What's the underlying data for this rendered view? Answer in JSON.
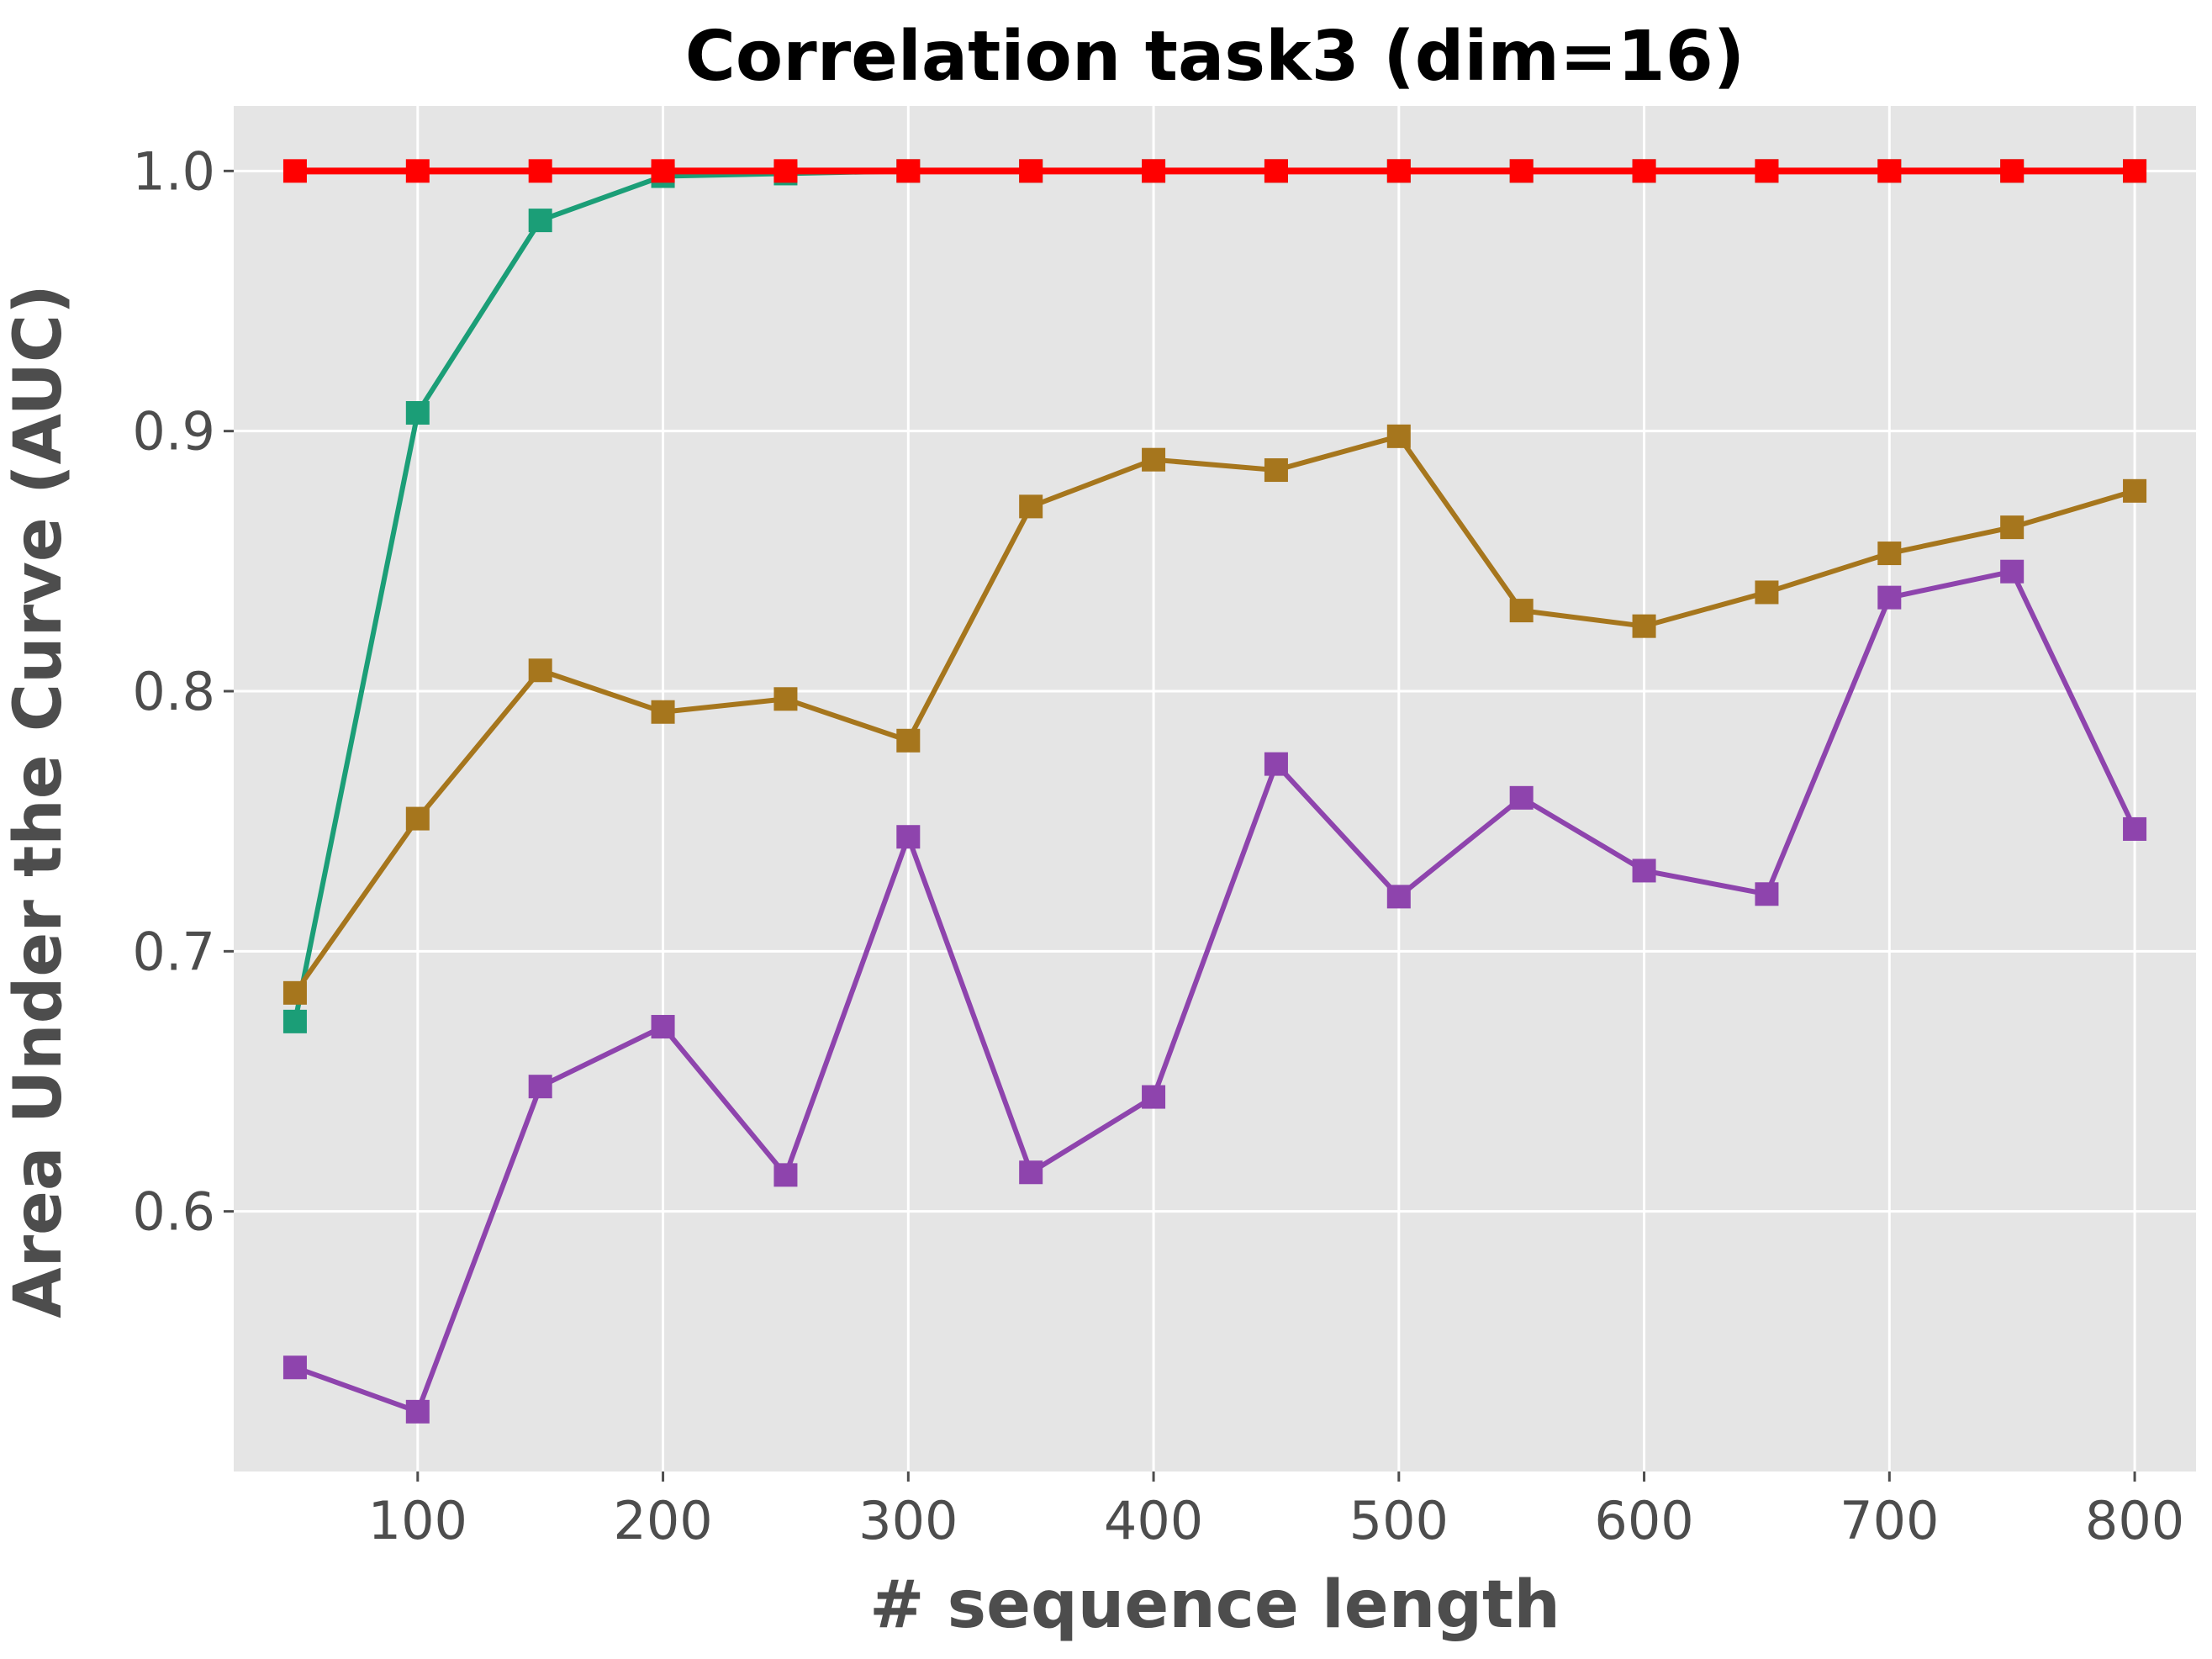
{
  "chart_data": {
    "type": "line",
    "title": "Correlation task3 (dim=16)",
    "xlabel": "# sequence length",
    "ylabel": "Area Under the Curve (AUC)",
    "x": [
      50,
      100,
      150,
      200,
      250,
      300,
      350,
      400,
      450,
      500,
      550,
      600,
      650,
      700,
      750,
      800
    ],
    "xlim": [
      25,
      825
    ],
    "ylim": [
      0.5,
      1.025
    ],
    "x_ticks": [
      100,
      200,
      300,
      400,
      500,
      600,
      700,
      800
    ],
    "y_ticks": [
      0.6,
      0.7,
      0.8,
      0.9,
      1.0
    ],
    "x_tick_labels": [
      "100",
      "200",
      "300",
      "400",
      "500",
      "600",
      "700",
      "800"
    ],
    "y_tick_labels": [
      "0.6",
      "0.7",
      "0.8",
      "0.9",
      "1.0"
    ],
    "grid": true,
    "background": "#e5e5e5",
    "series": [
      {
        "color": "#1b9e77",
        "marker": "square",
        "values": [
          0.673,
          0.907,
          0.981,
          0.998,
          0.999,
          1.0,
          1.0,
          1.0,
          1.0,
          1.0,
          1.0,
          1.0,
          1.0,
          1.0,
          1.0,
          1.0
        ]
      },
      {
        "color": "#a6761d",
        "marker": "square",
        "values": [
          0.684,
          0.751,
          0.808,
          0.792,
          0.797,
          0.781,
          0.871,
          0.889,
          0.885,
          0.898,
          0.831,
          0.825,
          0.838,
          0.853,
          0.863,
          0.877
        ]
      },
      {
        "color": "#8e44ad",
        "marker": "square",
        "values": [
          0.54,
          0.523,
          0.648,
          0.671,
          0.614,
          0.744,
          0.615,
          0.644,
          0.772,
          0.721,
          0.759,
          0.731,
          0.722,
          0.836,
          0.846,
          0.747
        ]
      },
      {
        "color": "#ff0000",
        "marker": "square",
        "values": [
          1.0,
          1.0,
          1.0,
          1.0,
          1.0,
          1.0,
          1.0,
          1.0,
          1.0,
          1.0,
          1.0,
          1.0,
          1.0,
          1.0,
          1.0,
          1.0
        ]
      }
    ]
  }
}
